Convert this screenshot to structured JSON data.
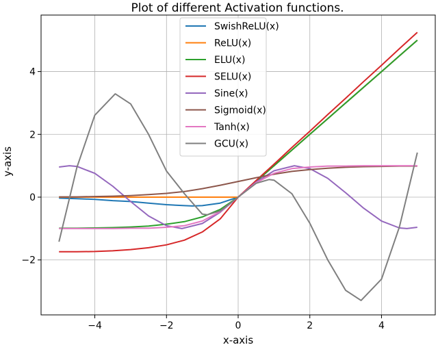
{
  "chart_data": {
    "type": "line",
    "title": "Plot of different Activation functions.",
    "xlabel": "x-axis",
    "ylabel": "y-axis",
    "xlim": [
      -5.5,
      5.5
    ],
    "ylim": [
      -3.75,
      5.8
    ],
    "xticks": [
      -4,
      -2,
      0,
      2,
      4
    ],
    "yticks": [
      -2,
      0,
      2,
      4
    ],
    "xtick_labels": [
      "−4",
      "−2",
      "0",
      "2",
      "4"
    ],
    "ytick_labels": [
      "−2",
      "0",
      "2",
      "4"
    ],
    "grid": true,
    "legend_position": "top-center",
    "series": [
      {
        "name": "SwishReLU(x)",
        "color": "#1f77b4",
        "x": [
          -5,
          -4.5,
          -4,
          -3.5,
          -3,
          -2.5,
          -2,
          -1.5,
          -1.28,
          -1,
          -0.5,
          0,
          0.5,
          1,
          1.5,
          2,
          2.5,
          3,
          3.5,
          4,
          4.5,
          5
        ],
        "y": [
          -0.03,
          -0.05,
          -0.07,
          -0.11,
          -0.14,
          -0.19,
          -0.24,
          -0.27,
          -0.28,
          -0.27,
          -0.19,
          0,
          0.5,
          1,
          1.5,
          2,
          2.5,
          3,
          3.5,
          4,
          4.5,
          5
        ]
      },
      {
        "name": "ReLU(x)",
        "color": "#ff7f0e",
        "x": [
          -5,
          -4.5,
          -4,
          -3.5,
          -3,
          -2.5,
          -2,
          -1.5,
          -1,
          -0.5,
          0,
          0.5,
          1,
          1.5,
          2,
          2.5,
          3,
          3.5,
          4,
          4.5,
          5
        ],
        "y": [
          0,
          0,
          0,
          0,
          0,
          0,
          0,
          0,
          0,
          0,
          0,
          0.5,
          1,
          1.5,
          2,
          2.5,
          3,
          3.5,
          4,
          4.5,
          5
        ]
      },
      {
        "name": "ELU(x)",
        "color": "#2ca02c",
        "x": [
          -5,
          -4.5,
          -4,
          -3.5,
          -3,
          -2.5,
          -2,
          -1.5,
          -1,
          -0.5,
          0,
          0.5,
          1,
          1.5,
          2,
          2.5,
          3,
          3.5,
          4,
          4.5,
          5
        ],
        "y": [
          -0.99,
          -0.99,
          -0.98,
          -0.97,
          -0.95,
          -0.92,
          -0.86,
          -0.78,
          -0.63,
          -0.39,
          0,
          0.5,
          1,
          1.5,
          2,
          2.5,
          3,
          3.5,
          4,
          4.5,
          5
        ]
      },
      {
        "name": "SELU(x)",
        "color": "#d62728",
        "x": [
          -5,
          -4.5,
          -4,
          -3.5,
          -3,
          -2.5,
          -2,
          -1.5,
          -1,
          -0.5,
          0,
          0.5,
          1,
          1.5,
          2,
          2.5,
          3,
          3.5,
          4,
          4.5,
          5
        ],
        "y": [
          -1.74,
          -1.74,
          -1.73,
          -1.71,
          -1.67,
          -1.61,
          -1.52,
          -1.37,
          -1.11,
          -0.69,
          0,
          0.53,
          1.05,
          1.58,
          2.1,
          2.63,
          3.15,
          3.68,
          4.2,
          4.73,
          5.25
        ]
      },
      {
        "name": "Sine(x)",
        "color": "#9467bd",
        "x": [
          -5,
          -4.71,
          -4.5,
          -4,
          -3.5,
          -3,
          -2.5,
          -2,
          -1.57,
          -1,
          -0.5,
          0,
          0.5,
          1,
          1.57,
          2,
          2.5,
          3,
          3.5,
          4,
          4.5,
          4.71,
          5
        ],
        "y": [
          0.96,
          1,
          0.98,
          0.76,
          0.35,
          -0.14,
          -0.6,
          -0.91,
          -1,
          -0.84,
          -0.48,
          0,
          0.48,
          0.84,
          1,
          0.91,
          0.6,
          0.14,
          -0.35,
          -0.76,
          -0.98,
          -1,
          -0.96
        ]
      },
      {
        "name": "Sigmoid(x)",
        "color": "#8c564b",
        "x": [
          -5,
          -4.5,
          -4,
          -3.5,
          -3,
          -2.5,
          -2,
          -1.5,
          -1,
          -0.5,
          0,
          0.5,
          1,
          1.5,
          2,
          2.5,
          3,
          3.5,
          4,
          4.5,
          5
        ],
        "y": [
          0.01,
          0.01,
          0.02,
          0.03,
          0.05,
          0.08,
          0.12,
          0.18,
          0.27,
          0.38,
          0.5,
          0.62,
          0.73,
          0.82,
          0.88,
          0.92,
          0.95,
          0.97,
          0.98,
          0.99,
          0.99
        ]
      },
      {
        "name": "Tanh(x)",
        "color": "#e377c2",
        "x": [
          -5,
          -4.5,
          -4,
          -3.5,
          -3,
          -2.5,
          -2,
          -1.5,
          -1,
          -0.5,
          0,
          0.5,
          1,
          1.5,
          2,
          2.5,
          3,
          3.5,
          4,
          4.5,
          5
        ],
        "y": [
          -1,
          -1,
          -1,
          -1,
          -0.99,
          -0.99,
          -0.96,
          -0.91,
          -0.76,
          -0.46,
          0,
          0.46,
          0.76,
          0.91,
          0.96,
          0.99,
          0.99,
          1,
          1,
          1,
          1
        ]
      },
      {
        "name": "GCU(x)",
        "color": "#7f7f7f",
        "x": [
          -5,
          -4.5,
          -4,
          -3.43,
          -3,
          -2.5,
          -2,
          -1.5,
          -1,
          -0.86,
          -0.5,
          0,
          0.5,
          0.86,
          1,
          1.5,
          2,
          2.5,
          3,
          3.43,
          4,
          4.5,
          5
        ],
        "y": [
          -1.42,
          0.95,
          2.61,
          3.29,
          2.97,
          2.0,
          0.83,
          0.11,
          -0.54,
          -0.56,
          -0.44,
          0,
          0.44,
          0.56,
          0.54,
          0.11,
          -0.83,
          -2.0,
          -2.97,
          -3.29,
          -2.61,
          -0.95,
          1.42
        ]
      }
    ]
  }
}
